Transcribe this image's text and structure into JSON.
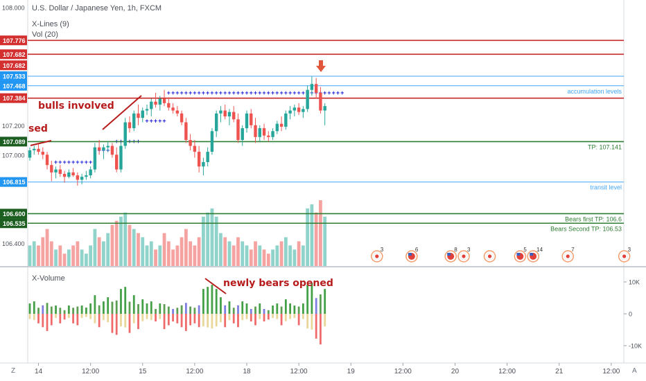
{
  "header": {
    "title": "U.S. Dollar / Japanese Yen, 1h, FXCM",
    "indicator_1": "X-Lines (9)",
    "indicator_2": "Vol (20)",
    "lower_pane_title": "X-Volume"
  },
  "colors": {
    "up": "#26a69a",
    "down": "#ef5350",
    "red_line": "#c62828",
    "green_line": "#2e7d32",
    "blue_line": "#42a5f5",
    "xline": "#1e22d6",
    "annotation": "#b71c1c",
    "arrow": "#e0573b"
  },
  "price_axis": {
    "ticks": [
      {
        "price": 108.0,
        "label": "108.000"
      },
      {
        "price": 107.2,
        "label": "107.200"
      },
      {
        "price": 107.0,
        "label": "107.000"
      },
      {
        "price": 106.4,
        "label": "106.400"
      }
    ]
  },
  "levels": [
    {
      "price": 107.776,
      "label": "107.776",
      "color": "red",
      "text": ""
    },
    {
      "price": 107.682,
      "label": "107.682",
      "color": "red",
      "text": ""
    },
    {
      "price": 107.682,
      "label": "107.682",
      "color": "red",
      "text": "",
      "tag_only": true
    },
    {
      "price": 107.533,
      "label": "107.533",
      "color": "blue",
      "text": ""
    },
    {
      "price": 107.468,
      "label": "107.468",
      "color": "blue",
      "text": "accumulation levels"
    },
    {
      "price": 107.384,
      "label": "107.384",
      "color": "red",
      "text": ""
    },
    {
      "price": 107.089,
      "label": "107.089",
      "color": "green",
      "text": "TP: 107.141"
    },
    {
      "price": 106.815,
      "label": "106.815",
      "color": "blue",
      "text": "transit level"
    },
    {
      "price": 106.6,
      "label": "106.600",
      "color": "green",
      "text": "Bears first TP: 106.6"
    },
    {
      "price": 106.535,
      "label": "106.535",
      "color": "green",
      "text": "Bears Second TP: 106.53"
    }
  ],
  "annotations": {
    "bulls": "bulls involved",
    "sed": "sed",
    "bears": "newly bears opened"
  },
  "volume_axis": {
    "ticks": [
      {
        "value": 10000,
        "label": "10K"
      },
      {
        "value": 0,
        "label": "0"
      },
      {
        "value": -10000,
        "label": "-10K"
      }
    ]
  },
  "time_axis": {
    "ticks": [
      {
        "label": "14",
        "index": 2
      },
      {
        "label": "12:00",
        "index": 14
      },
      {
        "label": "15",
        "index": 26
      },
      {
        "label": "12:00",
        "index": 38
      },
      {
        "label": "18",
        "index": 50
      },
      {
        "label": "12:00",
        "index": 62
      },
      {
        "label": "19",
        "index": 74
      },
      {
        "label": "12:00",
        "index": 86
      },
      {
        "label": "20",
        "index": 98
      },
      {
        "label": "12:00",
        "index": 110
      },
      {
        "label": "21",
        "index": 122
      },
      {
        "label": "12:00",
        "index": 134
      }
    ],
    "left_button": "Z",
    "right_button": "A"
  },
  "events": [
    {
      "index": 80,
      "count": "3",
      "flag": "jp"
    },
    {
      "index": 88,
      "count": "6",
      "flag": "us"
    },
    {
      "index": 97,
      "count": "8",
      "flag": "us"
    },
    {
      "index": 100,
      "count": "3",
      "flag": "jp"
    },
    {
      "index": 106,
      "count": "",
      "flag": "jp"
    },
    {
      "index": 113,
      "count": "5",
      "flag": "us"
    },
    {
      "index": 116,
      "count": "14",
      "flag": "us"
    },
    {
      "index": 124,
      "count": "7",
      "flag": "jp"
    },
    {
      "index": 137,
      "count": "3",
      "flag": "jp"
    }
  ],
  "chart_data": {
    "type": "candlestick",
    "symbol": "USD/JPY",
    "interval": "1h",
    "ylim": [
      106.24,
      108.05
    ],
    "candles": [
      {
        "o": 106.98,
        "h": 107.05,
        "l": 106.96,
        "c": 107.03,
        "v": 5
      },
      {
        "o": 107.03,
        "h": 107.06,
        "l": 107.0,
        "c": 107.04,
        "v": 6
      },
      {
        "o": 107.04,
        "h": 107.07,
        "l": 107.0,
        "c": 107.02,
        "v": 5
      },
      {
        "o": 107.02,
        "h": 107.05,
        "l": 106.97,
        "c": 107.0,
        "v": 7
      },
      {
        "o": 107.0,
        "h": 107.02,
        "l": 106.9,
        "c": 106.93,
        "v": 9
      },
      {
        "o": 106.93,
        "h": 106.96,
        "l": 106.82,
        "c": 106.88,
        "v": 6
      },
      {
        "o": 106.88,
        "h": 106.92,
        "l": 106.84,
        "c": 106.9,
        "v": 4
      },
      {
        "o": 106.9,
        "h": 106.93,
        "l": 106.85,
        "c": 106.87,
        "v": 5
      },
      {
        "o": 106.87,
        "h": 106.89,
        "l": 106.81,
        "c": 106.85,
        "v": 3
      },
      {
        "o": 106.85,
        "h": 106.9,
        "l": 106.84,
        "c": 106.88,
        "v": 4
      },
      {
        "o": 106.88,
        "h": 106.91,
        "l": 106.85,
        "c": 106.86,
        "v": 5
      },
      {
        "o": 106.86,
        "h": 106.88,
        "l": 106.79,
        "c": 106.83,
        "v": 6
      },
      {
        "o": 106.83,
        "h": 106.87,
        "l": 106.8,
        "c": 106.85,
        "v": 4
      },
      {
        "o": 106.85,
        "h": 106.89,
        "l": 106.83,
        "c": 106.86,
        "v": 3
      },
      {
        "o": 106.86,
        "h": 106.92,
        "l": 106.84,
        "c": 106.9,
        "v": 5
      },
      {
        "o": 106.9,
        "h": 107.08,
        "l": 106.88,
        "c": 107.05,
        "v": 9
      },
      {
        "o": 107.05,
        "h": 107.1,
        "l": 107.0,
        "c": 107.03,
        "v": 7
      },
      {
        "o": 107.03,
        "h": 107.07,
        "l": 106.97,
        "c": 107.05,
        "v": 6
      },
      {
        "o": 107.05,
        "h": 107.09,
        "l": 107.02,
        "c": 107.06,
        "v": 8
      },
      {
        "o": 107.06,
        "h": 107.08,
        "l": 106.98,
        "c": 107.0,
        "v": 10
      },
      {
        "o": 107.0,
        "h": 107.05,
        "l": 106.88,
        "c": 106.9,
        "v": 11
      },
      {
        "o": 106.9,
        "h": 107.08,
        "l": 106.88,
        "c": 107.06,
        "v": 12
      },
      {
        "o": 107.06,
        "h": 107.25,
        "l": 107.04,
        "c": 107.22,
        "v": 13
      },
      {
        "o": 107.22,
        "h": 107.26,
        "l": 107.15,
        "c": 107.18,
        "v": 10
      },
      {
        "o": 107.18,
        "h": 107.3,
        "l": 107.16,
        "c": 107.28,
        "v": 9
      },
      {
        "o": 107.28,
        "h": 107.34,
        "l": 107.2,
        "c": 107.25,
        "v": 8
      },
      {
        "o": 107.25,
        "h": 107.32,
        "l": 107.22,
        "c": 107.3,
        "v": 7
      },
      {
        "o": 107.3,
        "h": 107.34,
        "l": 107.27,
        "c": 107.31,
        "v": 5
      },
      {
        "o": 107.31,
        "h": 107.38,
        "l": 107.26,
        "c": 107.36,
        "v": 6
      },
      {
        "o": 107.36,
        "h": 107.42,
        "l": 107.32,
        "c": 107.34,
        "v": 4
      },
      {
        "o": 107.34,
        "h": 107.4,
        "l": 107.3,
        "c": 107.38,
        "v": 5
      },
      {
        "o": 107.38,
        "h": 107.44,
        "l": 107.33,
        "c": 107.35,
        "v": 8
      },
      {
        "o": 107.35,
        "h": 107.39,
        "l": 107.3,
        "c": 107.32,
        "v": 6
      },
      {
        "o": 107.32,
        "h": 107.35,
        "l": 107.28,
        "c": 107.3,
        "v": 4
      },
      {
        "o": 107.3,
        "h": 107.33,
        "l": 107.26,
        "c": 107.28,
        "v": 5
      },
      {
        "o": 107.28,
        "h": 107.3,
        "l": 107.2,
        "c": 107.22,
        "v": 7
      },
      {
        "o": 107.22,
        "h": 107.25,
        "l": 107.08,
        "c": 107.1,
        "v": 9
      },
      {
        "o": 107.1,
        "h": 107.14,
        "l": 107.03,
        "c": 107.06,
        "v": 6
      },
      {
        "o": 107.06,
        "h": 107.1,
        "l": 106.98,
        "c": 107.02,
        "v": 5
      },
      {
        "o": 107.02,
        "h": 107.06,
        "l": 106.88,
        "c": 106.92,
        "v": 7
      },
      {
        "o": 106.92,
        "h": 106.98,
        "l": 106.86,
        "c": 106.95,
        "v": 12
      },
      {
        "o": 106.95,
        "h": 107.05,
        "l": 106.92,
        "c": 107.02,
        "v": 13
      },
      {
        "o": 107.02,
        "h": 107.18,
        "l": 107.0,
        "c": 107.16,
        "v": 14
      },
      {
        "o": 107.16,
        "h": 107.3,
        "l": 107.12,
        "c": 107.28,
        "v": 12
      },
      {
        "o": 107.28,
        "h": 107.33,
        "l": 107.22,
        "c": 107.3,
        "v": 8
      },
      {
        "o": 107.3,
        "h": 107.34,
        "l": 107.24,
        "c": 107.26,
        "v": 7
      },
      {
        "o": 107.26,
        "h": 107.31,
        "l": 107.2,
        "c": 107.29,
        "v": 6
      },
      {
        "o": 107.29,
        "h": 107.33,
        "l": 107.22,
        "c": 107.24,
        "v": 5
      },
      {
        "o": 107.24,
        "h": 107.28,
        "l": 107.08,
        "c": 107.1,
        "v": 7
      },
      {
        "o": 107.1,
        "h": 107.2,
        "l": 107.06,
        "c": 107.18,
        "v": 6
      },
      {
        "o": 107.18,
        "h": 107.3,
        "l": 107.15,
        "c": 107.28,
        "v": 5
      },
      {
        "o": 107.28,
        "h": 107.31,
        "l": 107.18,
        "c": 107.2,
        "v": 4
      },
      {
        "o": 107.2,
        "h": 107.25,
        "l": 107.08,
        "c": 107.12,
        "v": 6
      },
      {
        "o": 107.12,
        "h": 107.2,
        "l": 107.09,
        "c": 107.18,
        "v": 5
      },
      {
        "o": 107.18,
        "h": 107.21,
        "l": 107.1,
        "c": 107.13,
        "v": 4
      },
      {
        "o": 107.13,
        "h": 107.16,
        "l": 107.09,
        "c": 107.12,
        "v": 3
      },
      {
        "o": 107.12,
        "h": 107.18,
        "l": 107.1,
        "c": 107.16,
        "v": 4
      },
      {
        "o": 107.16,
        "h": 107.23,
        "l": 107.14,
        "c": 107.21,
        "v": 5
      },
      {
        "o": 107.21,
        "h": 107.26,
        "l": 107.16,
        "c": 107.19,
        "v": 6
      },
      {
        "o": 107.19,
        "h": 107.3,
        "l": 107.17,
        "c": 107.28,
        "v": 7
      },
      {
        "o": 107.28,
        "h": 107.33,
        "l": 107.24,
        "c": 107.3,
        "v": 5
      },
      {
        "o": 107.3,
        "h": 107.34,
        "l": 107.26,
        "c": 107.32,
        "v": 4
      },
      {
        "o": 107.32,
        "h": 107.35,
        "l": 107.27,
        "c": 107.29,
        "v": 6
      },
      {
        "o": 107.29,
        "h": 107.33,
        "l": 107.25,
        "c": 107.31,
        "v": 5
      },
      {
        "o": 107.31,
        "h": 107.47,
        "l": 107.29,
        "c": 107.44,
        "v": 14
      },
      {
        "o": 107.44,
        "h": 107.53,
        "l": 107.4,
        "c": 107.48,
        "v": 15
      },
      {
        "o": 107.48,
        "h": 107.52,
        "l": 107.38,
        "c": 107.42,
        "v": 13
      },
      {
        "o": 107.42,
        "h": 107.46,
        "l": 107.28,
        "c": 107.3,
        "v": 16
      },
      {
        "o": 107.3,
        "h": 107.35,
        "l": 107.2,
        "c": 107.33,
        "v": 12
      }
    ]
  }
}
